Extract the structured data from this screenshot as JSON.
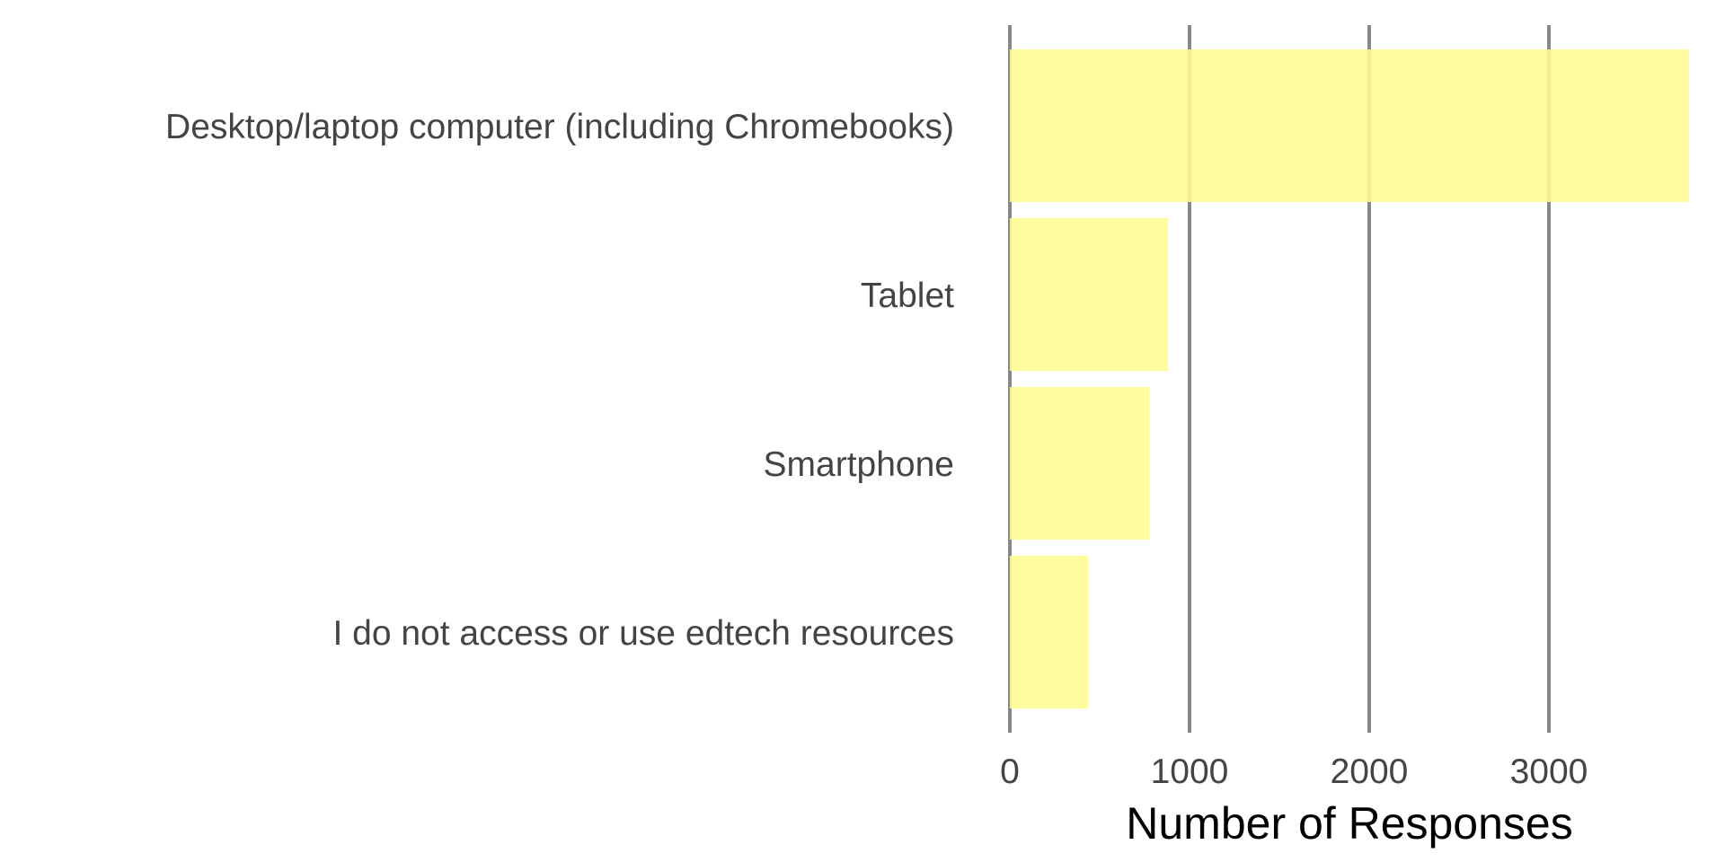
{
  "chart_data": {
    "type": "bar",
    "orientation": "horizontal",
    "categories": [
      "Desktop/laptop computer (including Chromebooks)",
      "Tablet",
      "Smartphone",
      "I do not access or use edtech resources"
    ],
    "values": [
      3780,
      880,
      775,
      435
    ],
    "xlabel": "Number of Responses",
    "ylabel": "",
    "xlim": [
      0,
      3780
    ],
    "xticks": [
      "0",
      "1000",
      "2000",
      "3000"
    ],
    "grid": "vertical",
    "bar_color": "#FFFC93",
    "grid_color": "#888888"
  }
}
